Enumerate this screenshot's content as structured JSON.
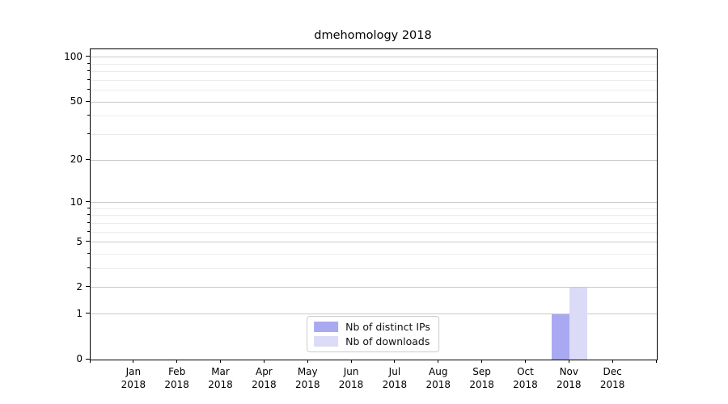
{
  "chart_data": {
    "type": "bar",
    "title": "dmehomology 2018",
    "categories": [
      {
        "month": "Jan",
        "year": "2018"
      },
      {
        "month": "Feb",
        "year": "2018"
      },
      {
        "month": "Mar",
        "year": "2018"
      },
      {
        "month": "Apr",
        "year": "2018"
      },
      {
        "month": "May",
        "year": "2018"
      },
      {
        "month": "Jun",
        "year": "2018"
      },
      {
        "month": "Jul",
        "year": "2018"
      },
      {
        "month": "Aug",
        "year": "2018"
      },
      {
        "month": "Sep",
        "year": "2018"
      },
      {
        "month": "Oct",
        "year": "2018"
      },
      {
        "month": "Nov",
        "year": "2018"
      },
      {
        "month": "Dec",
        "year": "2018"
      }
    ],
    "series": [
      {
        "name": "Nb of distinct IPs",
        "color": "#a9a9f2",
        "values": [
          0,
          0,
          0,
          0,
          0,
          0,
          0,
          0,
          0,
          0,
          1,
          0
        ]
      },
      {
        "name": "Nb of downloads",
        "color": "#dbdbf8",
        "values": [
          0,
          0,
          0,
          0,
          0,
          0,
          0,
          0,
          0,
          0,
          2,
          0
        ]
      }
    ],
    "xlabel": "",
    "ylabel": "",
    "y_scale": "log1p",
    "y_major_ticks": [
      0,
      1,
      2,
      5,
      10,
      20,
      50,
      100
    ],
    "y_minor_ticks": [
      3,
      4,
      6,
      7,
      8,
      9,
      30,
      40,
      60,
      70,
      80,
      90
    ],
    "ylim": [
      0,
      113
    ],
    "grid": true,
    "legend_position": "lower center",
    "colors": {
      "major_grid": "#c9c9c9",
      "minor_grid": "#ebebeb",
      "axis": "#000000",
      "background": "#ffffff"
    }
  }
}
